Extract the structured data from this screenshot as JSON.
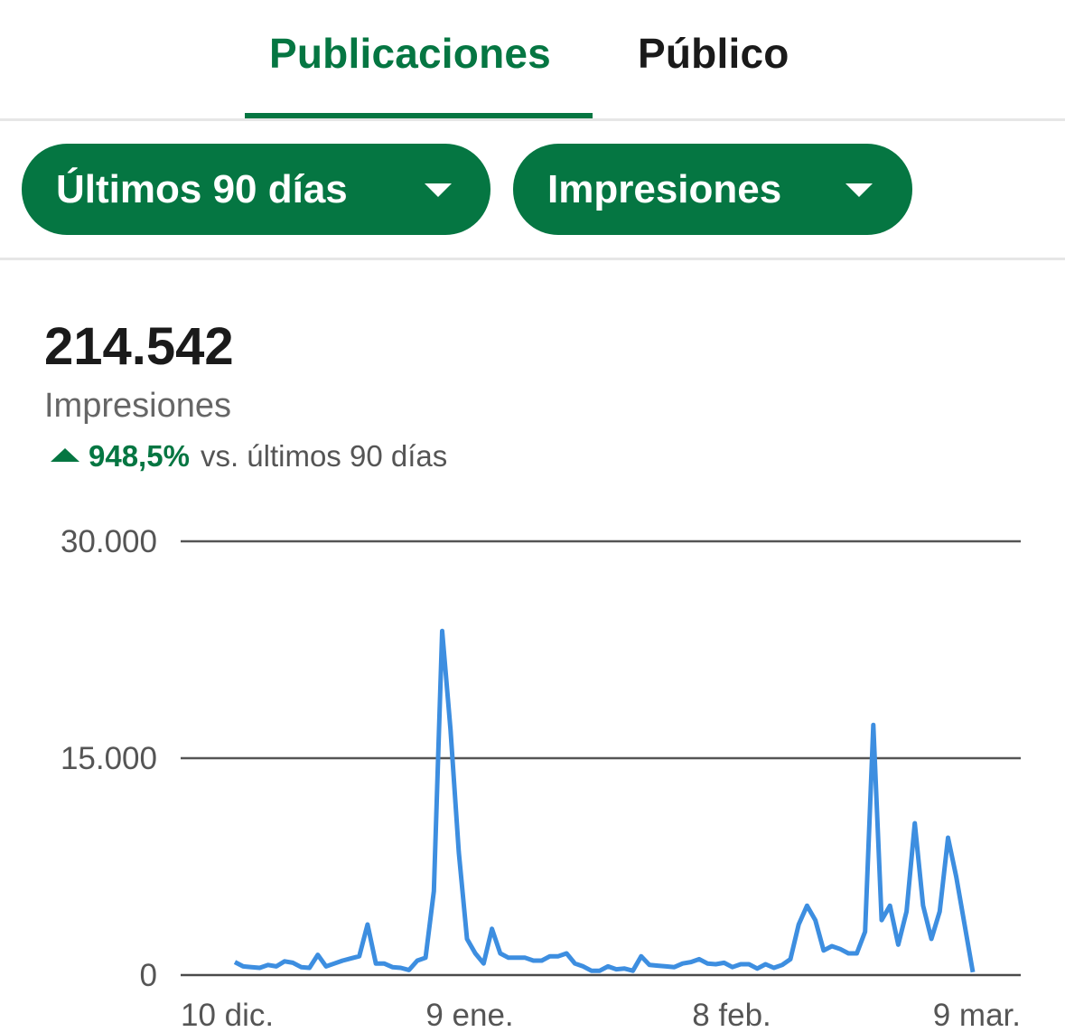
{
  "tabs": [
    {
      "label": "Publicaciones",
      "active": true
    },
    {
      "label": "Público",
      "active": false
    }
  ],
  "filters": {
    "range_label": "Últimos 90 días",
    "metric_label": "Impresiones"
  },
  "summary": {
    "value": "214.542",
    "label": "Impresiones",
    "change": "948,5%",
    "comparison": "vs. últimos 90 días"
  },
  "colors": {
    "accent": "#057642",
    "line": "#3d8ee0"
  },
  "chart_data": {
    "type": "line",
    "ylim": [
      0,
      30000
    ],
    "y_ticks": [
      "30.000",
      "15.000",
      "0"
    ],
    "x_tick_labels": [
      "10 dic.",
      "9 ene.",
      "8 feb.",
      "9 mar."
    ],
    "grid": true,
    "series": [
      {
        "values": [
          900,
          600,
          550,
          500,
          700,
          600,
          950,
          850,
          550,
          500,
          1400,
          600,
          800,
          1000,
          1150,
          1300,
          3500,
          800,
          800,
          550,
          500,
          350,
          1000,
          1200,
          5800,
          23800,
          17000,
          8500,
          2500,
          1500,
          800,
          3200,
          1500,
          1200,
          1200,
          1200,
          1000,
          1000,
          1300,
          1300,
          1500,
          800,
          600,
          300,
          300,
          600,
          400,
          450,
          300,
          1300,
          700,
          650,
          600,
          550,
          800,
          900,
          1100,
          800,
          750,
          850,
          550,
          750,
          750,
          450,
          750,
          500,
          700,
          1100,
          3500,
          4800,
          3800,
          1700,
          2000,
          1800,
          1500,
          1500,
          3000,
          17300,
          3800,
          4800,
          2100,
          4400,
          10500,
          4800,
          2500,
          4400,
          9500,
          6800,
          3500,
          200
        ]
      }
    ]
  }
}
